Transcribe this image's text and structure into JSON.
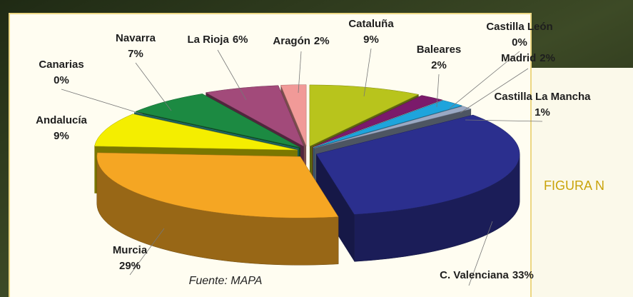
{
  "chart_data": {
    "type": "pie",
    "categories": [
      "Cataluña",
      "Baleares",
      "Castilla León",
      "Madrid",
      "Castilla La Mancha",
      "C. Valenciana",
      "Murcia",
      "Andalucía",
      "Canarias",
      "Navarra",
      "La Rioja",
      "Aragón"
    ],
    "values": [
      9,
      2,
      0,
      2,
      1,
      33,
      29,
      9,
      0,
      7,
      6,
      2
    ],
    "value_labels": [
      "9%",
      "2%",
      "0%",
      "2%",
      "1%",
      "33%",
      "29%",
      "9%",
      "0%",
      "7%",
      "6%",
      "2%"
    ],
    "colors": [
      "#b8c41c",
      "#7b1a6b",
      "#e8e8e8",
      "#1ea4dc",
      "#9aa9c4",
      "#2b2f8e",
      "#f5a623",
      "#f4ee00",
      "#3bb3b0",
      "#1c8a42",
      "#a24a7a",
      "#f19a98"
    ],
    "source": "Fuente: MAPA"
  },
  "figure_caption": "FIGURA N"
}
